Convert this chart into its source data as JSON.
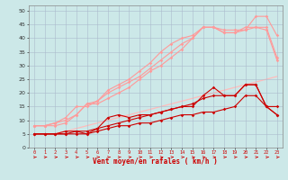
{
  "xlabel": "Vent moyen/en rafales ( km/h )",
  "x": [
    0,
    1,
    2,
    3,
    4,
    5,
    6,
    7,
    8,
    9,
    10,
    11,
    12,
    13,
    14,
    15,
    16,
    17,
    18,
    19,
    20,
    21,
    22,
    23
  ],
  "line_dark1": [
    5,
    5,
    5,
    5,
    5,
    5,
    6,
    7,
    8,
    8,
    9,
    9,
    10,
    11,
    12,
    12,
    13,
    13,
    14,
    15,
    19,
    19,
    15,
    12
  ],
  "line_dark2": [
    5,
    5,
    5,
    5,
    6,
    6,
    7,
    8,
    9,
    10,
    11,
    12,
    13,
    14,
    15,
    16,
    18,
    19,
    19,
    19,
    23,
    23,
    15,
    15
  ],
  "line_dark3": [
    5,
    5,
    5,
    6,
    6,
    5,
    7,
    11,
    12,
    11,
    12,
    12,
    13,
    14,
    15,
    15,
    19,
    22,
    19,
    19,
    23,
    23,
    15,
    12
  ],
  "line_light1": [
    8,
    8,
    8,
    9,
    12,
    16,
    16,
    18,
    20,
    22,
    25,
    28,
    30,
    33,
    36,
    40,
    44,
    44,
    43,
    43,
    43,
    44,
    44,
    33
  ],
  "line_light2": [
    8,
    8,
    9,
    10,
    12,
    16,
    17,
    20,
    22,
    24,
    26,
    29,
    32,
    35,
    38,
    40,
    44,
    44,
    42,
    42,
    43,
    48,
    48,
    41
  ],
  "line_light3": [
    8,
    8,
    9,
    11,
    15,
    15,
    17,
    21,
    23,
    25,
    28,
    31,
    35,
    38,
    40,
    41,
    44,
    44,
    42,
    42,
    44,
    44,
    43,
    32
  ],
  "line_pale": [
    5,
    5,
    5,
    6,
    7,
    8,
    9,
    10,
    11,
    12,
    13,
    14,
    15,
    16,
    17,
    18,
    19,
    20,
    21,
    22,
    23,
    24,
    25,
    26
  ],
  "bg_color": "#cce8e8",
  "grid_color": "#aabbcc",
  "color_dark": "#cc0000",
  "color_light": "#ff9999",
  "color_pale": "#ffbbbb",
  "yticks": [
    0,
    5,
    10,
    15,
    20,
    25,
    30,
    35,
    40,
    45,
    50
  ],
  "ylim": [
    0,
    52
  ],
  "xlim": [
    -0.5,
    23.5
  ]
}
